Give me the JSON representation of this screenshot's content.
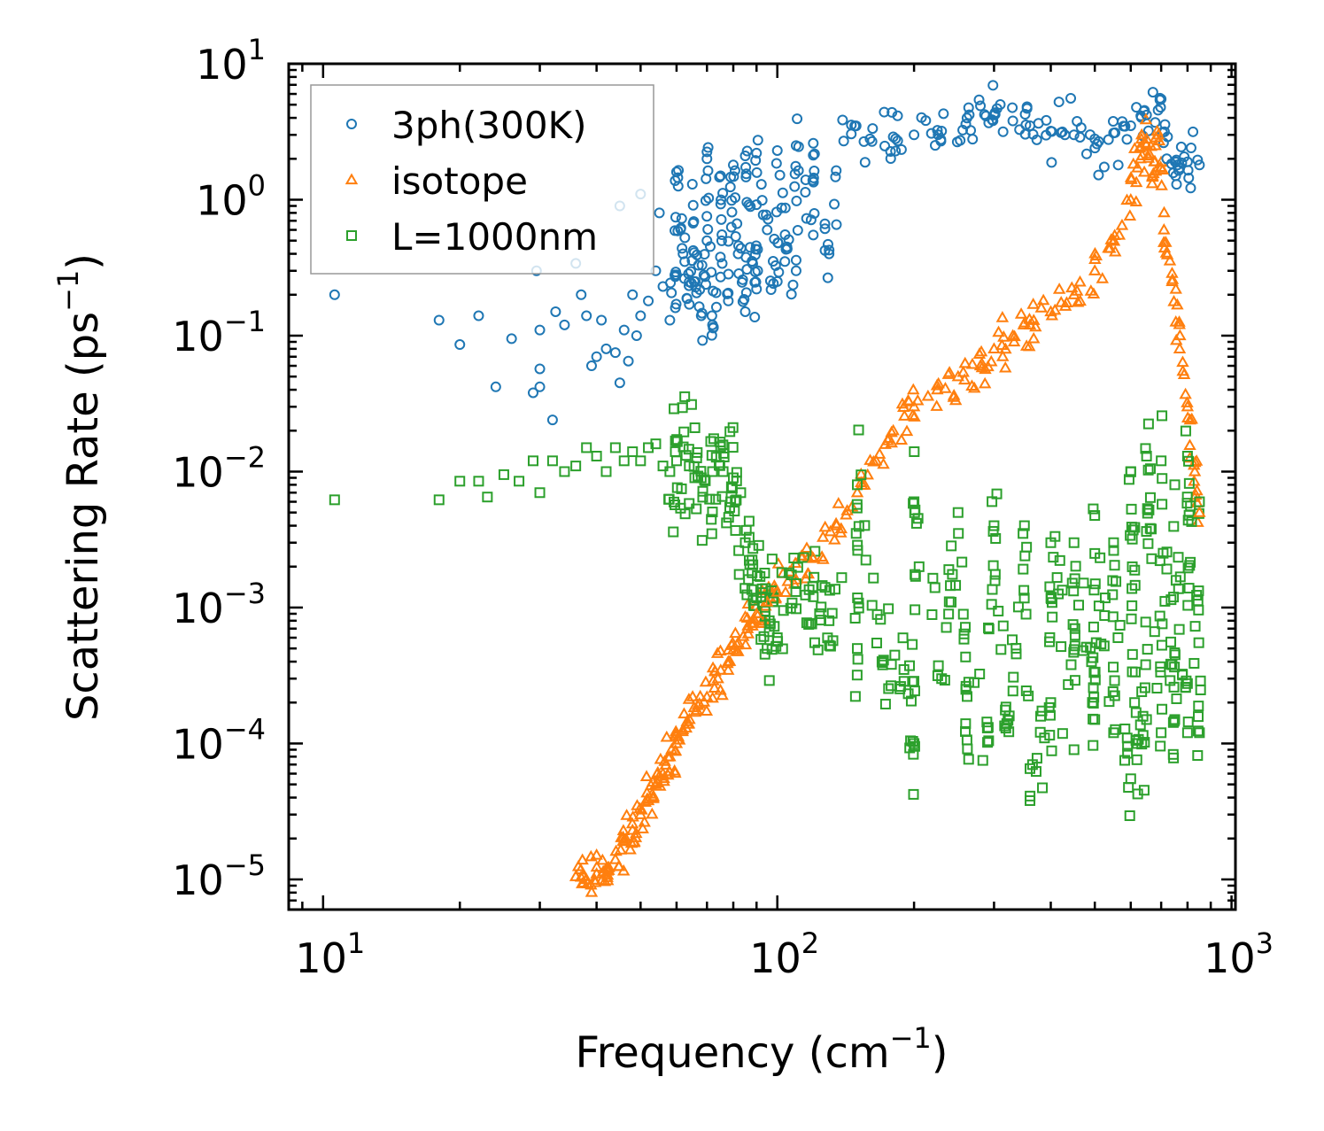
{
  "chart_data": {
    "type": "scatter",
    "title": "",
    "xlabel": "Frequency (cm",
    "xlabel_sup": "−1",
    "xlabel_end": ")",
    "ylabel": "Scattering Rate (ps",
    "ylabel_sup": "−1",
    "ylabel_end": ")",
    "xscale": "log",
    "yscale": "log",
    "xlim": [
      8.4,
      1020
    ],
    "ylim": [
      6e-06,
      10
    ],
    "x_ticks": [
      {
        "value": 10,
        "base": "10",
        "exp": "1"
      },
      {
        "value": 100,
        "base": "10",
        "exp": "2"
      },
      {
        "value": 1000,
        "base": "10",
        "exp": "3"
      }
    ],
    "y_ticks": [
      {
        "value": 1e-05,
        "base": "10",
        "exp": "−5"
      },
      {
        "value": 0.0001,
        "base": "10",
        "exp": "−4"
      },
      {
        "value": 0.001,
        "base": "10",
        "exp": "−3"
      },
      {
        "value": 0.01,
        "base": "10",
        "exp": "−2"
      },
      {
        "value": 0.1,
        "base": "10",
        "exp": "−1"
      },
      {
        "value": 1,
        "base": "10",
        "exp": "0"
      },
      {
        "value": 10,
        "base": "10",
        "exp": "1"
      }
    ],
    "legend_position": "top-left",
    "series": [
      {
        "name": "3ph(300K)",
        "marker": "circle",
        "color": "#1f77b4",
        "points": [
          [
            10.6,
            0.2
          ],
          [
            18,
            0.13
          ],
          [
            20,
            0.086
          ],
          [
            22,
            0.14
          ],
          [
            24,
            0.042
          ],
          [
            26,
            0.095
          ],
          [
            29,
            0.038
          ],
          [
            29.5,
            0.3
          ],
          [
            30,
            0.057
          ],
          [
            30,
            0.11
          ],
          [
            30,
            0.042
          ],
          [
            32,
            0.024
          ],
          [
            32.5,
            0.15
          ],
          [
            34,
            0.12
          ],
          [
            36,
            0.34
          ],
          [
            37,
            0.2
          ],
          [
            38,
            0.14
          ],
          [
            39,
            0.06
          ],
          [
            40,
            0.07
          ],
          [
            41,
            0.13
          ],
          [
            42,
            0.08
          ],
          [
            44,
            0.075
          ],
          [
            45,
            0.045
          ],
          [
            46,
            0.11
          ],
          [
            47,
            0.065
          ],
          [
            48,
            0.2
          ],
          [
            49,
            0.1
          ],
          [
            50,
            0.14
          ],
          [
            52,
            0.18
          ],
          [
            54,
            0.3
          ],
          [
            56,
            0.23
          ],
          [
            58,
            0.13
          ],
          [
            60,
            0.28
          ],
          [
            62,
            0.4
          ],
          [
            64,
            0.17
          ],
          [
            66,
            0.25
          ],
          [
            68,
            0.14
          ],
          [
            70,
            0.5
          ],
          [
            72,
            0.12
          ],
          [
            75,
            0.27
          ],
          [
            78,
            0.18
          ],
          [
            82,
            0.4
          ],
          [
            85,
            0.15
          ],
          [
            88,
            0.35
          ],
          [
            90,
            0.22
          ],
          [
            95,
            0.6
          ],
          [
            100,
            0.25
          ],
          [
            105,
            0.45
          ],
          [
            110,
            0.3
          ],
          [
            120,
            0.55
          ],
          [
            130,
            0.4
          ],
          [
            45,
            0.9
          ],
          [
            50,
            1.1
          ],
          [
            55,
            0.8
          ],
          [
            60,
            1.6
          ],
          [
            65,
            1.3
          ],
          [
            70,
            2.0
          ],
          [
            75,
            1.5
          ],
          [
            80,
            1.8
          ],
          [
            85,
            2.1
          ],
          [
            90,
            2.2
          ],
          [
            100,
            2.3
          ],
          [
            110,
            2.5
          ],
          [
            120,
            2.6
          ],
          [
            140,
            2.7
          ],
          [
            160,
            2.8
          ],
          [
            180,
            2.9
          ],
          [
            200,
            3.0
          ],
          [
            230,
            3.2
          ],
          [
            260,
            3.6
          ],
          [
            280,
            4.9
          ],
          [
            300,
            4.2
          ],
          [
            330,
            3.8
          ],
          [
            360,
            3.5
          ],
          [
            400,
            3.2
          ],
          [
            450,
            3.0
          ],
          [
            500,
            2.8
          ],
          [
            550,
            3.1
          ],
          [
            600,
            3.5
          ],
          [
            650,
            4.2
          ],
          [
            700,
            5.5
          ],
          [
            720,
            2.0
          ],
          [
            760,
            1.8
          ],
          [
            800,
            1.9
          ],
          [
            850,
            1.8
          ]
        ]
      },
      {
        "name": "isotope",
        "marker": "triangle",
        "color": "#ff7f0e",
        "points": [
          [
            36,
            1.05e-05
          ],
          [
            38,
            1e-05
          ],
          [
            40,
            1.1e-05
          ],
          [
            42,
            1.2e-05
          ],
          [
            44,
            1.4e-05
          ],
          [
            46,
            1.9e-05
          ],
          [
            48,
            2.3e-05
          ],
          [
            50,
            3e-05
          ],
          [
            52,
            3.8e-05
          ],
          [
            54,
            5e-05
          ],
          [
            56,
            6e-05
          ],
          [
            58,
            8e-05
          ],
          [
            60,
            0.0001
          ],
          [
            63,
            0.00013
          ],
          [
            66,
            0.00017
          ],
          [
            70,
            0.00022
          ],
          [
            74,
            0.0003
          ],
          [
            78,
            0.0004
          ],
          [
            82,
            0.00055
          ],
          [
            86,
            0.0007
          ],
          [
            90,
            0.0009
          ],
          [
            95,
            0.0011
          ],
          [
            100,
            0.0013
          ],
          [
            110,
            0.0016
          ],
          [
            120,
            0.0023
          ],
          [
            135,
            0.004
          ],
          [
            150,
            0.007
          ],
          [
            165,
            0.012
          ],
          [
            180,
            0.02
          ],
          [
            200,
            0.03
          ],
          [
            225,
            0.04
          ],
          [
            250,
            0.05
          ],
          [
            280,
            0.06
          ],
          [
            300,
            0.08
          ],
          [
            330,
            0.1
          ],
          [
            360,
            0.12
          ],
          [
            400,
            0.15
          ],
          [
            450,
            0.2
          ],
          [
            500,
            0.3
          ],
          [
            550,
            0.5
          ],
          [
            600,
            1.0
          ],
          [
            630,
            2.0
          ],
          [
            650,
            2.8
          ],
          [
            670,
            1.5
          ],
          [
            690,
            3.0
          ],
          [
            710,
            0.6
          ],
          [
            740,
            0.25
          ],
          [
            770,
            0.1
          ],
          [
            800,
            0.03
          ],
          [
            830,
            0.01
          ],
          [
            850,
            0.005
          ]
        ]
      },
      {
        "name": "L=1000nm",
        "marker": "square",
        "color": "#2ca02c",
        "points": [
          [
            10.6,
            0.0062
          ],
          [
            18,
            0.0062
          ],
          [
            20,
            0.0085
          ],
          [
            22,
            0.0085
          ],
          [
            23,
            0.0065
          ],
          [
            25,
            0.0095
          ],
          [
            27,
            0.0085
          ],
          [
            29,
            0.012
          ],
          [
            30,
            0.007
          ],
          [
            32,
            0.012
          ],
          [
            34,
            0.01
          ],
          [
            36,
            0.011
          ],
          [
            38,
            0.015
          ],
          [
            40,
            0.013
          ],
          [
            42,
            0.01
          ],
          [
            44,
            0.015
          ],
          [
            46,
            0.012
          ],
          [
            48,
            0.014
          ],
          [
            50,
            0.012
          ],
          [
            52,
            0.015
          ],
          [
            54,
            0.016
          ],
          [
            56,
            0.011
          ],
          [
            58,
            0.01
          ],
          [
            60,
            0.012
          ],
          [
            64,
            0.011
          ],
          [
            68,
            0.009
          ],
          [
            72,
            0.01
          ],
          [
            76,
            0.01
          ],
          [
            80,
            0.009
          ],
          [
            85,
            0.003
          ],
          [
            88,
            0.0018
          ],
          [
            92,
            0.0012
          ],
          [
            96,
            0.0008
          ],
          [
            100,
            0.0006
          ],
          [
            110,
            0.0015
          ],
          [
            120,
            0.0012
          ],
          [
            130,
            0.0008
          ],
          [
            150,
            0.0005
          ],
          [
            170,
            0.0004
          ],
          [
            190,
            0.00035
          ],
          [
            200,
            0.0001
          ],
          [
            230,
            0.0003
          ],
          [
            260,
            0.00025
          ],
          [
            290,
            0.00013
          ],
          [
            320,
            0.00014
          ],
          [
            360,
            3.8e-05
          ],
          [
            400,
            0.0002
          ],
          [
            450,
            9e-05
          ],
          [
            500,
            0.00015
          ],
          [
            550,
            0.00012
          ],
          [
            600,
            5.5e-05
          ],
          [
            620,
            0.0001
          ],
          [
            650,
            0.00015
          ],
          [
            700,
            0.00012
          ],
          [
            750,
            0.00015
          ],
          [
            800,
            0.00012
          ],
          [
            850,
            0.00012
          ],
          [
            150,
            0.008
          ],
          [
            200,
            0.006
          ],
          [
            250,
            0.005
          ],
          [
            300,
            0.004
          ],
          [
            350,
            0.004
          ],
          [
            400,
            0.003
          ],
          [
            450,
            0.003
          ],
          [
            500,
            0.0025
          ],
          [
            550,
            0.003
          ],
          [
            600,
            0.01
          ],
          [
            650,
            0.013
          ],
          [
            700,
            0.012
          ],
          [
            750,
            0.008
          ],
          [
            800,
            0.013
          ],
          [
            850,
            0.006
          ]
        ]
      }
    ]
  }
}
